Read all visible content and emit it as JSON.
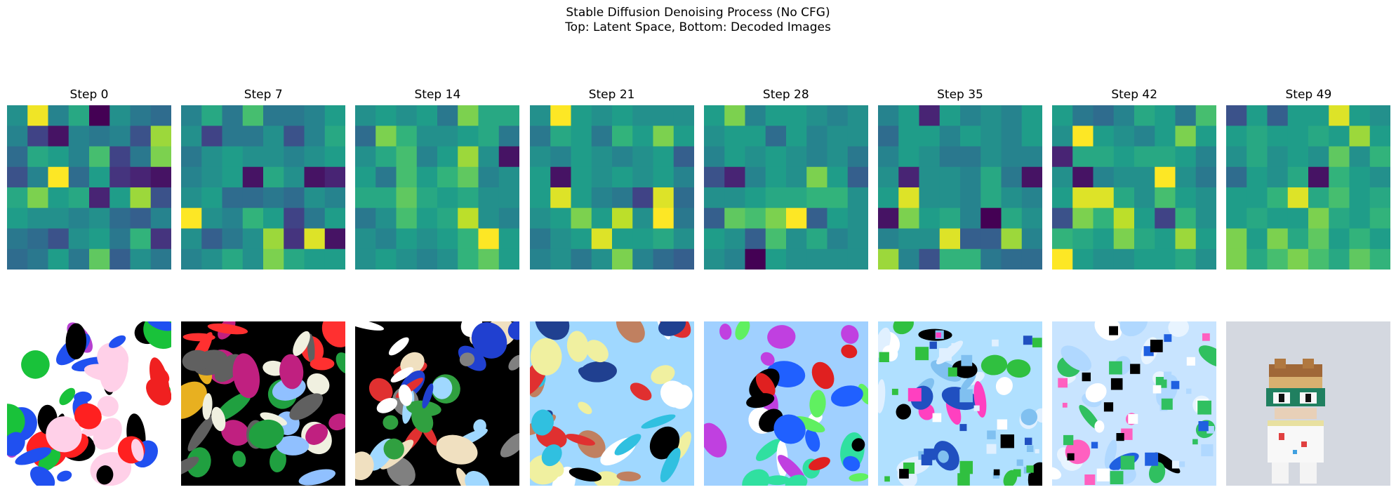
{
  "chart_data": {
    "type": "heatmap",
    "suptitle": [
      "Stable Diffusion Denoising Process (No CFG)",
      "Top: Latent Space, Bottom: Decoded Images"
    ],
    "colormap": "viridis",
    "rows_label": {
      "top": "Latent Space",
      "bottom": "Decoded Images"
    },
    "steps": [
      {
        "title": "Step 0",
        "latent": [
          [
            0.5,
            0.98,
            0.45,
            0.6,
            0.0,
            0.5,
            0.4,
            0.35
          ],
          [
            0.45,
            0.2,
            0.05,
            0.45,
            0.4,
            0.45,
            0.25,
            0.85
          ],
          [
            0.35,
            0.6,
            0.55,
            0.45,
            0.7,
            0.2,
            0.4,
            0.8
          ],
          [
            0.25,
            0.45,
            1.0,
            0.35,
            0.55,
            0.15,
            0.1,
            0.05
          ],
          [
            0.6,
            0.8,
            0.55,
            0.6,
            0.1,
            0.55,
            0.85,
            0.25
          ],
          [
            0.55,
            0.5,
            0.5,
            0.45,
            0.5,
            0.35,
            0.3,
            0.45
          ],
          [
            0.4,
            0.35,
            0.25,
            0.5,
            0.55,
            0.4,
            0.65,
            0.15
          ],
          [
            0.35,
            0.4,
            0.55,
            0.4,
            0.75,
            0.3,
            0.5,
            0.4
          ]
        ],
        "decoded_palette": [
          "#ffffff",
          "#000000",
          "#19c23a",
          "#f02020",
          "#b640d0",
          "#ffd0e8",
          "#ff2020",
          "#2050f0"
        ]
      },
      {
        "title": "Step 7",
        "latent": [
          [
            0.45,
            0.6,
            0.4,
            0.7,
            0.4,
            0.4,
            0.45,
            0.55
          ],
          [
            0.5,
            0.2,
            0.4,
            0.4,
            0.5,
            0.25,
            0.45,
            0.6
          ],
          [
            0.4,
            0.5,
            0.55,
            0.5,
            0.5,
            0.45,
            0.5,
            0.55
          ],
          [
            0.45,
            0.5,
            0.55,
            0.05,
            0.6,
            0.5,
            0.05,
            0.1
          ],
          [
            0.5,
            0.55,
            0.35,
            0.35,
            0.4,
            0.35,
            0.5,
            0.45
          ],
          [
            1.0,
            0.5,
            0.45,
            0.65,
            0.55,
            0.2,
            0.4,
            0.55
          ],
          [
            0.5,
            0.3,
            0.4,
            0.5,
            0.85,
            0.15,
            0.95,
            0.05
          ],
          [
            0.45,
            0.5,
            0.6,
            0.5,
            0.8,
            0.6,
            0.55,
            0.55
          ]
        ],
        "decoded_palette": [
          "#000000",
          "#f0f0e0",
          "#e8b020",
          "#c02080",
          "#20a040",
          "#ff3030",
          "#90c0ff",
          "#606060"
        ]
      },
      {
        "title": "Step 14",
        "latent": [
          [
            0.5,
            0.55,
            0.5,
            0.55,
            0.4,
            0.8,
            0.6,
            0.6
          ],
          [
            0.35,
            0.8,
            0.65,
            0.5,
            0.5,
            0.55,
            0.6,
            0.4
          ],
          [
            0.5,
            0.6,
            0.7,
            0.45,
            0.55,
            0.85,
            0.5,
            0.05
          ],
          [
            0.55,
            0.4,
            0.7,
            0.55,
            0.65,
            0.75,
            0.45,
            0.5
          ],
          [
            0.6,
            0.6,
            0.75,
            0.6,
            0.55,
            0.6,
            0.5,
            0.5
          ],
          [
            0.4,
            0.5,
            0.7,
            0.55,
            0.6,
            0.9,
            0.5,
            0.45
          ],
          [
            0.5,
            0.45,
            0.55,
            0.5,
            0.55,
            0.65,
            1.0,
            0.55
          ],
          [
            0.5,
            0.55,
            0.5,
            0.45,
            0.5,
            0.65,
            0.75,
            0.55
          ]
        ],
        "decoded_palette": [
          "#000000",
          "#ffffff",
          "#a0d8ff",
          "#2040d0",
          "#e03030",
          "#30a040",
          "#808080",
          "#f0e0c0"
        ]
      },
      {
        "title": "Step 21",
        "latent": [
          [
            0.5,
            1.0,
            0.55,
            0.5,
            0.55,
            0.5,
            0.5,
            0.5
          ],
          [
            0.4,
            0.6,
            0.55,
            0.4,
            0.65,
            0.55,
            0.8,
            0.55
          ],
          [
            0.5,
            0.45,
            0.55,
            0.5,
            0.45,
            0.5,
            0.55,
            0.3
          ],
          [
            0.55,
            0.05,
            0.55,
            0.5,
            0.55,
            0.5,
            0.55,
            0.45
          ],
          [
            0.55,
            0.95,
            0.55,
            0.45,
            0.4,
            0.2,
            0.95,
            0.35
          ],
          [
            0.5,
            0.55,
            0.8,
            0.55,
            0.9,
            0.5,
            1.0,
            0.4
          ],
          [
            0.4,
            0.5,
            0.55,
            0.95,
            0.55,
            0.55,
            0.6,
            0.5
          ],
          [
            0.45,
            0.5,
            0.4,
            0.5,
            0.8,
            0.45,
            0.35,
            0.3
          ]
        ],
        "decoded_palette": [
          "#a0d8ff",
          "#000000",
          "#ffffff",
          "#30c0e0",
          "#e03030",
          "#204090",
          "#c08060",
          "#f0f0a0"
        ]
      },
      {
        "title": "Step 28",
        "latent": [
          [
            0.55,
            0.8,
            0.45,
            0.55,
            0.55,
            0.5,
            0.45,
            0.5
          ],
          [
            0.5,
            0.55,
            0.55,
            0.35,
            0.55,
            0.45,
            0.5,
            0.5
          ],
          [
            0.45,
            0.55,
            0.5,
            0.55,
            0.5,
            0.45,
            0.5,
            0.4
          ],
          [
            0.25,
            0.1,
            0.45,
            0.55,
            0.5,
            0.8,
            0.55,
            0.3
          ],
          [
            0.5,
            0.5,
            0.55,
            0.6,
            0.6,
            0.65,
            0.65,
            0.5
          ],
          [
            0.3,
            0.75,
            0.7,
            0.8,
            1.0,
            0.3,
            0.55,
            0.5
          ],
          [
            0.55,
            0.5,
            0.3,
            0.7,
            0.5,
            0.6,
            0.45,
            0.5
          ],
          [
            0.5,
            0.45,
            0.0,
            0.55,
            0.5,
            0.5,
            0.5,
            0.5
          ]
        ],
        "decoded_palette": [
          "#a0d0ff",
          "#30e0a0",
          "#ffffff",
          "#e02020",
          "#000000",
          "#c040e0",
          "#2060ff",
          "#60f060"
        ]
      },
      {
        "title": "Step 35",
        "latent": [
          [
            0.45,
            0.55,
            0.1,
            0.55,
            0.45,
            0.5,
            0.45,
            0.55
          ],
          [
            0.35,
            0.55,
            0.55,
            0.45,
            0.55,
            0.5,
            0.45,
            0.55
          ],
          [
            0.45,
            0.55,
            0.5,
            0.4,
            0.4,
            0.5,
            0.45,
            0.45
          ],
          [
            0.5,
            0.1,
            0.5,
            0.5,
            0.45,
            0.6,
            0.4,
            0.05
          ],
          [
            0.55,
            0.95,
            0.5,
            0.5,
            0.45,
            0.6,
            0.5,
            0.45
          ],
          [
            0.05,
            0.8,
            0.55,
            0.6,
            0.45,
            0.0,
            0.6,
            0.5
          ],
          [
            0.45,
            0.5,
            0.5,
            0.95,
            0.3,
            0.3,
            0.85,
            0.45
          ],
          [
            0.85,
            0.45,
            0.25,
            0.65,
            0.65,
            0.4,
            0.35,
            0.35
          ]
        ],
        "decoded_palette": [
          "#b0e0ff",
          "#ffffff",
          "#2050c0",
          "#30c040",
          "#000000",
          "#ff40c0",
          "#80c0f0",
          "#e0f0ff"
        ]
      },
      {
        "title": "Step 42",
        "latent": [
          [
            0.55,
            0.4,
            0.35,
            0.45,
            0.6,
            0.55,
            0.4,
            0.7
          ],
          [
            0.5,
            1.0,
            0.55,
            0.5,
            0.45,
            0.55,
            0.8,
            0.55
          ],
          [
            0.1,
            0.6,
            0.6,
            0.55,
            0.6,
            0.6,
            0.55,
            0.45
          ],
          [
            0.5,
            0.05,
            0.45,
            0.5,
            0.5,
            1.0,
            0.5,
            0.4
          ],
          [
            0.55,
            0.95,
            0.95,
            0.6,
            0.5,
            0.7,
            0.55,
            0.5
          ],
          [
            0.25,
            0.8,
            0.65,
            0.9,
            0.55,
            0.2,
            0.65,
            0.5
          ],
          [
            0.65,
            0.6,
            0.55,
            0.8,
            0.6,
            0.55,
            0.85,
            0.55
          ],
          [
            1.0,
            0.55,
            0.5,
            0.5,
            0.55,
            0.55,
            0.6,
            0.5
          ]
        ],
        "decoded_palette": [
          "#c8e4ff",
          "#b0d8ff",
          "#ffffff",
          "#30c060",
          "#2060e0",
          "#000000",
          "#ff60c0",
          "#e8f4ff"
        ]
      },
      {
        "title": "Step 49",
        "latent": [
          [
            0.25,
            0.55,
            0.3,
            0.55,
            0.55,
            0.95,
            0.55,
            0.5
          ],
          [
            0.55,
            0.6,
            0.55,
            0.55,
            0.6,
            0.55,
            0.85,
            0.55
          ],
          [
            0.5,
            0.6,
            0.5,
            0.55,
            0.5,
            0.75,
            0.5,
            0.65
          ],
          [
            0.35,
            0.55,
            0.5,
            0.6,
            0.05,
            0.65,
            0.55,
            0.5
          ],
          [
            0.55,
            0.55,
            0.65,
            0.95,
            0.6,
            0.7,
            0.55,
            0.6
          ],
          [
            0.55,
            0.6,
            0.55,
            0.55,
            0.8,
            0.6,
            0.55,
            0.65
          ],
          [
            0.8,
            0.55,
            0.8,
            0.6,
            0.75,
            0.55,
            0.65,
            0.55
          ],
          [
            0.8,
            0.6,
            0.7,
            0.8,
            0.7,
            0.6,
            0.75,
            0.65
          ]
        ],
        "decoded_palette": [
          "#d4d8e0"
        ]
      }
    ]
  }
}
